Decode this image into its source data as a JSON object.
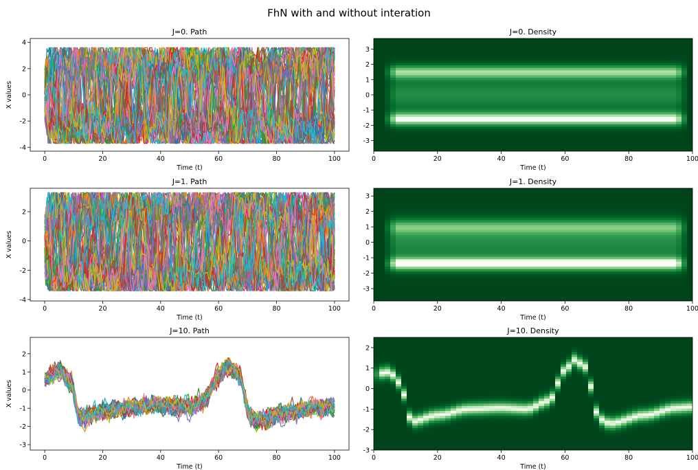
{
  "figure": {
    "suptitle": "FhN with and without interation"
  },
  "chart_data": [
    {
      "id": "j0-path",
      "type": "line",
      "title": "J=0. Path",
      "xlabel": "Time (t)",
      "ylabel": "X values",
      "xlim": [
        -5,
        105
      ],
      "ylim": [
        -4.3,
        4.3
      ],
      "xticks": [
        0,
        20,
        40,
        60,
        80,
        100
      ],
      "yticks": [
        -4,
        -2,
        0,
        2,
        4
      ],
      "paths": {
        "style": "bimodal",
        "amp": 3.3,
        "spread": 0.35,
        "count": 60
      },
      "colors": [
        "#1f77b4",
        "#ff7f0e",
        "#2ca02c",
        "#d62728",
        "#9467bd",
        "#8c564b",
        "#e377c2",
        "#7f7f7f",
        "#bcbd22",
        "#17becf"
      ]
    },
    {
      "id": "j0-density",
      "type": "heatmap",
      "title": "J=0. Density",
      "xlabel": "Time (t)",
      "ylabel": "",
      "xlim": [
        0,
        100
      ],
      "ylim": [
        -3.7,
        3.7
      ],
      "xticks": [
        0,
        20,
        40,
        60,
        80,
        100
      ],
      "yticks": [
        -3,
        -2,
        -1,
        0,
        1,
        2,
        3
      ],
      "colormap": "Greens_r",
      "bands": [
        {
          "center": 1.5,
          "width": 0.45,
          "strength": 0.8
        },
        {
          "center": -1.6,
          "width": 0.45,
          "strength": 1.0
        },
        {
          "center": 0.0,
          "width": 1.2,
          "strength": 0.45
        }
      ]
    },
    {
      "id": "j1-path",
      "type": "line",
      "title": "J=1. Path",
      "xlabel": "Time (t)",
      "ylabel": "X values",
      "xlim": [
        -5,
        105
      ],
      "ylim": [
        -4.1,
        3.6
      ],
      "xticks": [
        0,
        20,
        40,
        60,
        80,
        100
      ],
      "yticks": [
        -4,
        -2,
        0,
        2
      ],
      "paths": {
        "style": "bimodal",
        "amp": 3.0,
        "spread": 0.35,
        "count": 60
      },
      "colors": [
        "#1f77b4",
        "#ff7f0e",
        "#2ca02c",
        "#d62728",
        "#9467bd",
        "#8c564b",
        "#e377c2",
        "#7f7f7f",
        "#bcbd22",
        "#17becf"
      ]
    },
    {
      "id": "j1-density",
      "type": "heatmap",
      "title": "J=1. Density",
      "xlabel": "Time (t)",
      "ylabel": "",
      "xlim": [
        0,
        100
      ],
      "ylim": [
        -3.8,
        3.5
      ],
      "xticks": [
        0,
        20,
        40,
        60,
        80,
        100
      ],
      "yticks": [
        -3,
        -2,
        -1,
        0,
        1,
        2,
        3
      ],
      "colormap": "Greens_r",
      "bands": [
        {
          "center": 1.0,
          "width": 0.5,
          "strength": 0.55
        },
        {
          "center": -1.4,
          "width": 0.45,
          "strength": 1.0
        },
        {
          "center": 0.0,
          "width": 1.3,
          "strength": 0.45
        }
      ]
    },
    {
      "id": "j10-path",
      "type": "line",
      "title": "J=10. Path",
      "xlabel": "Time (t)",
      "ylabel": "X values",
      "xlim": [
        -5,
        105
      ],
      "ylim": [
        -3.3,
        2.9
      ],
      "xticks": [
        0,
        20,
        40,
        60,
        80,
        100
      ],
      "yticks": [
        -3,
        -2,
        -1,
        0,
        1,
        2
      ],
      "mean_path": {
        "x": [
          0,
          5,
          9,
          12,
          20,
          30,
          40,
          50,
          55,
          60,
          63,
          67,
          71,
          74,
          85,
          95,
          100
        ],
        "y": [
          0.6,
          1.1,
          0.5,
          -1.5,
          -1.2,
          -0.9,
          -0.8,
          -0.9,
          -0.6,
          0.8,
          1.4,
          0.9,
          -1.5,
          -1.6,
          -1.2,
          -0.9,
          -0.9
        ]
      },
      "paths": {
        "style": "band",
        "spread": 0.55,
        "count": 30
      },
      "colors": [
        "#1f77b4",
        "#ff7f0e",
        "#2ca02c",
        "#d62728",
        "#9467bd",
        "#8c564b",
        "#e377c2",
        "#7f7f7f",
        "#bcbd22",
        "#17becf"
      ]
    },
    {
      "id": "j10-density",
      "type": "heatmap",
      "title": "J=10. Density",
      "xlabel": "Time (t)",
      "ylabel": "",
      "xlim": [
        0,
        100
      ],
      "ylim": [
        -3.0,
        2.5
      ],
      "xticks": [
        0,
        20,
        40,
        60,
        80,
        100
      ],
      "yticks": [
        -3,
        -2,
        -1,
        0,
        1,
        2
      ],
      "colormap": "Greens_r",
      "curve": {
        "x": [
          0,
          5,
          8,
          12,
          20,
          30,
          40,
          48,
          55,
          60,
          63,
          66,
          71,
          74,
          85,
          95,
          100
        ],
        "y": [
          0.7,
          0.8,
          0.3,
          -1.6,
          -1.3,
          -1.0,
          -0.95,
          -1.0,
          -0.6,
          0.9,
          1.4,
          1.1,
          -1.5,
          -1.7,
          -1.3,
          -0.95,
          -0.9
        ]
      }
    }
  ]
}
